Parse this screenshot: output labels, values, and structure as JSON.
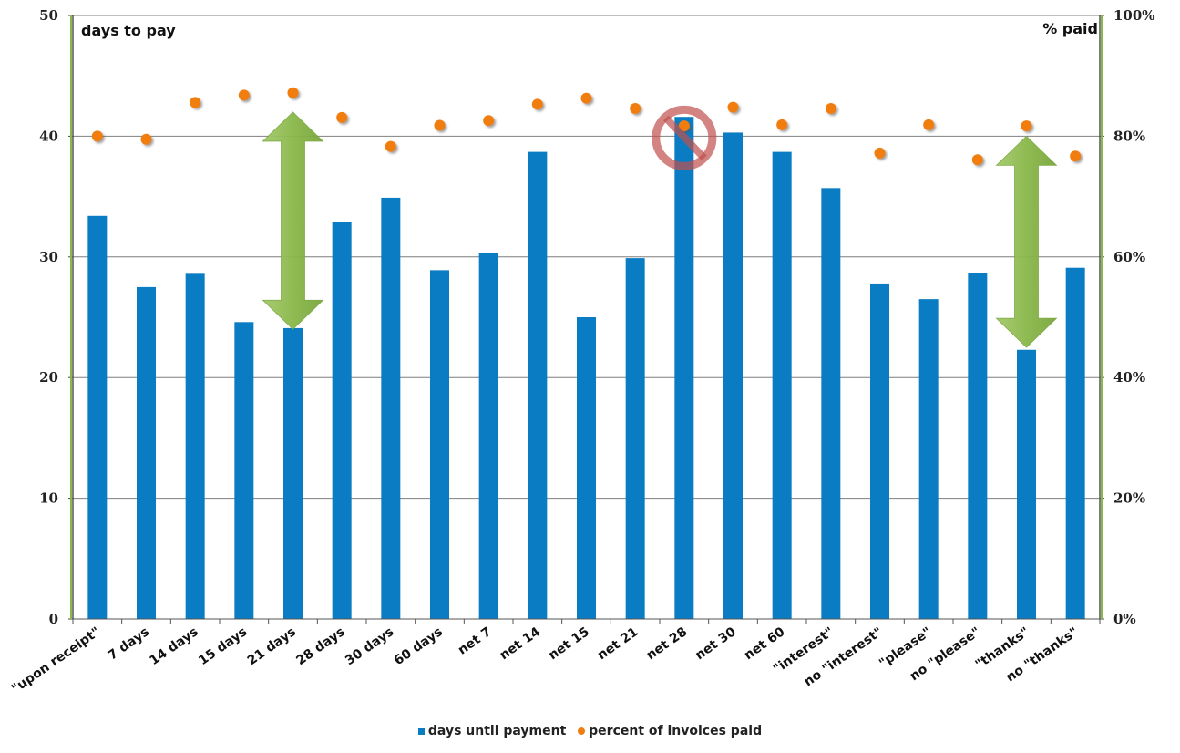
{
  "chart_data": {
    "type": "bar+scatter",
    "categories": [
      "\"upon receipt\"",
      "7 days",
      "14 days",
      "15 days",
      "21 days",
      "28 days",
      "30 days",
      "60 days",
      "net 7",
      "net 14",
      "net 15",
      "net 21",
      "net 28",
      "net 30",
      "net 60",
      "\"interest\"",
      "no \"interest\"",
      "\"please\"",
      "no \"please\"",
      "\"thanks\"",
      "no \"thanks\""
    ],
    "series": [
      {
        "name": "days until payment",
        "axis": "left",
        "type": "bar",
        "color": "#0a7cc3",
        "values": [
          33.4,
          27.5,
          28.6,
          24.6,
          24.1,
          32.9,
          34.9,
          28.9,
          30.3,
          38.7,
          25.0,
          29.9,
          41.6,
          40.3,
          38.7,
          35.7,
          27.8,
          26.5,
          28.7,
          22.3,
          29.1
        ]
      },
      {
        "name": "percent of invoices paid",
        "axis": "right",
        "type": "scatter",
        "color": "#f07d0f",
        "values": [
          80,
          79.5,
          85.6,
          86.8,
          87.2,
          83.1,
          78.3,
          81.8,
          82.6,
          85.3,
          86.3,
          84.6,
          81.7,
          84.8,
          81.9,
          84.6,
          77.2,
          81.9,
          76.1,
          81.7,
          76.7
        ]
      }
    ],
    "ylabel_left": "days to pay",
    "ylabel_right": "% paid",
    "ylim_left": [
      0,
      50
    ],
    "ylim_right": [
      0,
      100
    ],
    "yticks_left": [
      "0",
      "10",
      "20",
      "30",
      "40",
      "50"
    ],
    "yticks_right": [
      "0%",
      "20%",
      "40%",
      "60%",
      "80%",
      "100%"
    ],
    "grid": true,
    "legend_position": "bottom",
    "annotations": [
      {
        "kind": "double-arrow",
        "category_index": 4,
        "from_value": 24,
        "to_value": 42,
        "color": "#8ab84a"
      },
      {
        "kind": "double-arrow",
        "category_index": 19,
        "from_value": 22.5,
        "to_value": 40,
        "color": "#8ab84a"
      },
      {
        "kind": "no-sign",
        "category_index": 12,
        "at_value": 40,
        "color": "#c0504d"
      }
    ]
  },
  "legend": {
    "bar_label": "days until payment",
    "dot_label": "percent of invoices paid"
  }
}
